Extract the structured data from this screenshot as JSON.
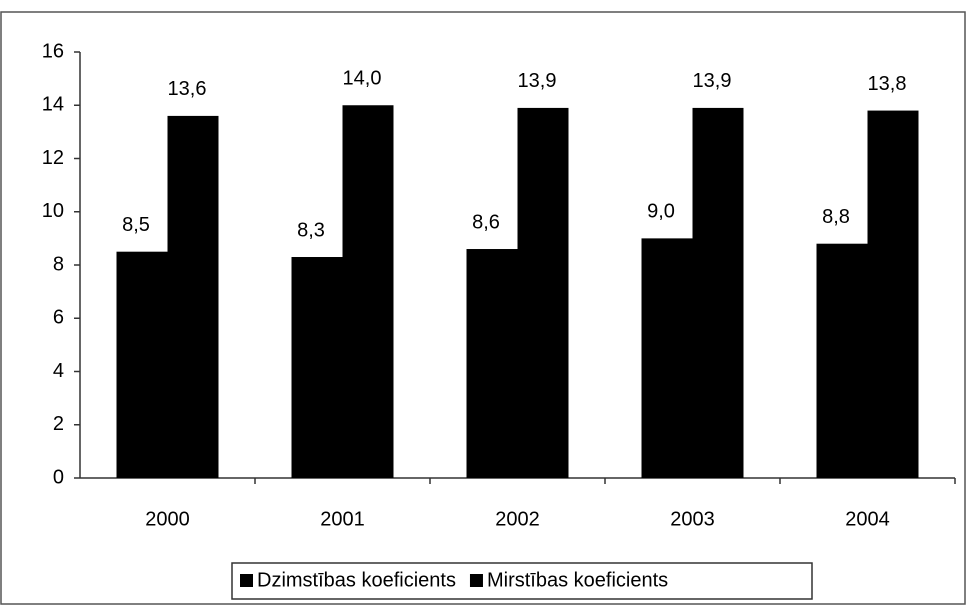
{
  "chart_data": {
    "type": "bar",
    "categories": [
      "2000",
      "2001",
      "2002",
      "2003",
      "2004"
    ],
    "series": [
      {
        "name": "Dzimstības koeficients",
        "color": "#000000",
        "values": [
          8.5,
          8.3,
          8.6,
          9.0,
          8.8
        ],
        "value_labels": [
          "8,5",
          "8,3",
          "8,6",
          "9,0",
          "8,8"
        ]
      },
      {
        "name": "Mirstības koeficients",
        "color": "#000000",
        "values": [
          13.6,
          14.0,
          13.9,
          13.9,
          13.8
        ],
        "value_labels": [
          "13,6",
          "14,0",
          "13,9",
          "13,9",
          "13,8"
        ]
      }
    ],
    "ylim": [
      0,
      16
    ],
    "yticks": [
      0,
      2,
      4,
      6,
      8,
      10,
      12,
      14,
      16
    ],
    "legend": "bottom"
  }
}
